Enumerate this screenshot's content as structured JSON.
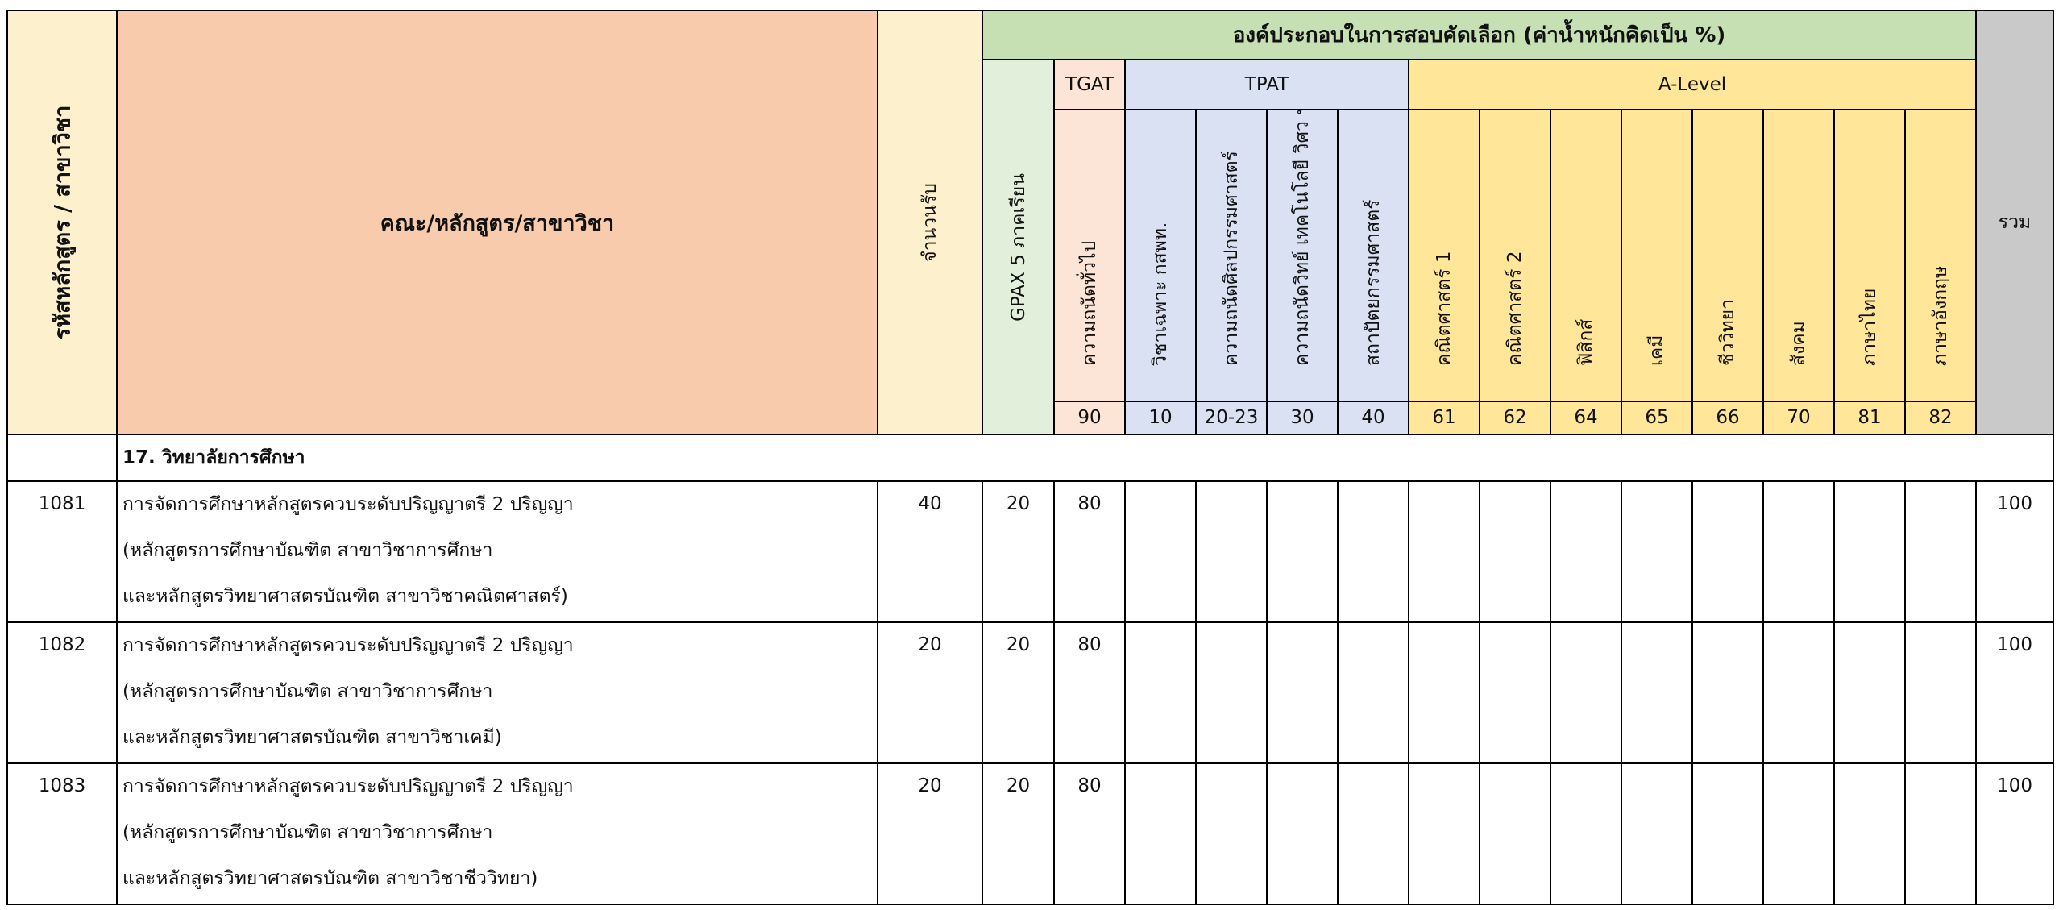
{
  "header": {
    "code_label": "รหัสหลักสูตร / สาขาวิชา",
    "program_label": "คณะ/หลักสูตร/สาขาวิชา",
    "seats_label": "จำนวนรับ",
    "components_label": "องค์ประกอบในการสอบคัดเลือก (ค่าน้ำหนักคิดเป็น %)",
    "gpax_label": "GPAX 5 ภาคเรียน",
    "total_label": "รวม",
    "groups": {
      "tgat": "TGAT",
      "tpat": "TPAT",
      "alevel": "A-Level"
    },
    "subjects": [
      {
        "name": "ความถนัดทั่วไป",
        "code": "90",
        "group": "tgat"
      },
      {
        "name": "วิชาเฉพาะ กสพท.",
        "code": "10",
        "group": "tpat"
      },
      {
        "name": "ความถนัดศิลปกรรมศาสตร์",
        "code": "20-23",
        "group": "tpat"
      },
      {
        "name": "ความถนัดวิทย์ เทคโนโลยี วิศว ฯ",
        "code": "30",
        "group": "tpat"
      },
      {
        "name": "สถาปัตยกรรมศาสตร์",
        "code": "40",
        "group": "tpat"
      },
      {
        "name": "คณิตศาสตร์ 1",
        "code": "61",
        "group": "alevel"
      },
      {
        "name": "คณิตศาสตร์ 2",
        "code": "62",
        "group": "alevel"
      },
      {
        "name": "ฟิสิกส์",
        "code": "64",
        "group": "alevel"
      },
      {
        "name": "เคมี",
        "code": "65",
        "group": "alevel"
      },
      {
        "name": "ชีววิทยา",
        "code": "66",
        "group": "alevel"
      },
      {
        "name": "สังคม",
        "code": "70",
        "group": "alevel"
      },
      {
        "name": "ภาษาไทย",
        "code": "81",
        "group": "alevel"
      },
      {
        "name": "ภาษาอังกฤษ",
        "code": "82",
        "group": "alevel"
      }
    ]
  },
  "section": {
    "title": "17. วิทยาลัยการศึกษา"
  },
  "rows": [
    {
      "code": "1081",
      "lines": [
        "การจัดการศึกษาหลักสูตรควบระดับปริญญาตรี 2 ปริญญา",
        "(หลักสูตรการศึกษาบัณฑิต สาขาวิชาการศึกษา",
        "และหลักสูตรวิทยาศาสตรบัณฑิต สาขาวิชาคณิตศาสตร์)"
      ],
      "seats": "40",
      "gpax": "20",
      "tgat": "80",
      "total": "100"
    },
    {
      "code": "1082",
      "lines": [
        "การจัดการศึกษาหลักสูตรควบระดับปริญญาตรี 2 ปริญญา",
        "(หลักสูตรการศึกษาบัณฑิต สาขาวิชาการศึกษา",
        "และหลักสูตรวิทยาศาสตรบัณฑิต สาขาวิชาเคมี)"
      ],
      "seats": "20",
      "gpax": "20",
      "tgat": "80",
      "total": "100"
    },
    {
      "code": "1083",
      "lines": [
        "การจัดการศึกษาหลักสูตรควบระดับปริญญาตรี 2 ปริญญา",
        "(หลักสูตรการศึกษาบัณฑิต สาขาวิชาการศึกษา",
        "และหลักสูตรวิทยาศาสตรบัณฑิต สาขาวิชาชีววิทยา)"
      ],
      "seats": "20",
      "gpax": "20",
      "tgat": "80",
      "total": "100"
    }
  ],
  "colors": {
    "code_bg": "#fdf1cd",
    "program_bg": "#f8cbad",
    "components_bg": "#c6e0b4",
    "gpax_bg": "#e2efda",
    "tgat_bg": "#fce4d6",
    "tpat_bg": "#d9e1f2",
    "alevel_bg": "#ffe699",
    "total_bg": "#c9c9c9"
  }
}
